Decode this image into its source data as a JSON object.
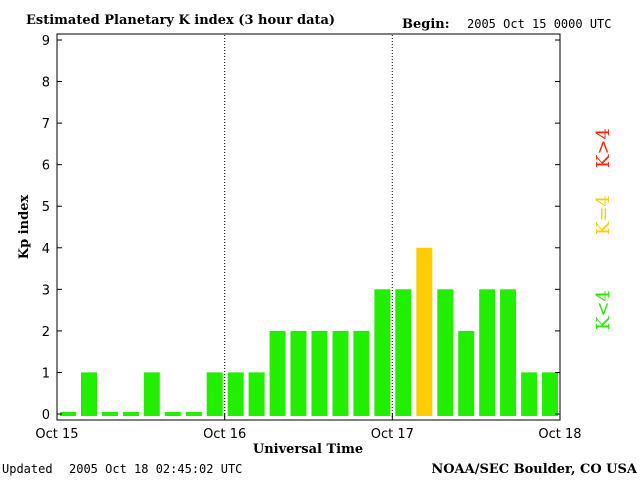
{
  "chart_data": {
    "type": "bar",
    "title": "Estimated Planetary K index (3 hour data)",
    "begin_label": "Begin:",
    "begin_value": "2005 Oct 15 0000 UTC",
    "xlabel": "Universal Time",
    "ylabel": "Kp index",
    "ylim": [
      0,
      9
    ],
    "yticks": [
      "0",
      "1",
      "2",
      "3",
      "4",
      "5",
      "6",
      "7",
      "8",
      "9"
    ],
    "xticks": [
      "Oct 15",
      "Oct 16",
      "Oct 17",
      "Oct 18"
    ],
    "values": [
      0,
      1,
      0,
      0,
      1,
      0,
      0,
      1,
      1,
      1,
      2,
      2,
      2,
      2,
      2,
      3,
      3,
      4,
      3,
      2,
      3,
      3,
      1,
      1
    ],
    "colors": {
      "below4": "#22ee00",
      "equal4": "#ffcc00",
      "above4": "#ff2200"
    },
    "legend": [
      {
        "text": "K<4",
        "color": "#22ee00"
      },
      {
        "text": "K=4",
        "color": "#ffcc00"
      },
      {
        "text": "K>4",
        "color": "#ff2200"
      }
    ],
    "grid": false
  },
  "footer": {
    "updated_label": "Updated",
    "updated_value": "2005 Oct 18 02:45:02 UTC",
    "source": "NOAA/SEC Boulder, CO USA"
  }
}
